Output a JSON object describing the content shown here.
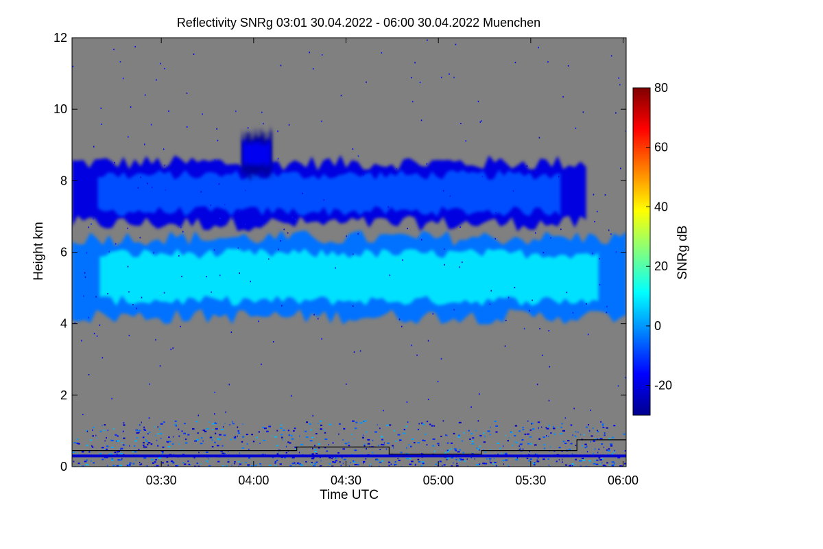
{
  "chart_data": {
    "type": "heatmap",
    "title": "Reflectivity SNRg   03:01 30.04.2022 - 06:00 30.04.2022 Muenchen",
    "xlabel": "Time UTC",
    "ylabel": "Height km",
    "colorbar_label": "SNRg dB",
    "xlim_minutes": [
      181,
      361
    ],
    "ylim": [
      0,
      12
    ],
    "x_ticks": [
      {
        "value": 210,
        "label": "03:30"
      },
      {
        "value": 240,
        "label": "04:00"
      },
      {
        "value": 270,
        "label": "04:30"
      },
      {
        "value": 300,
        "label": "05:00"
      },
      {
        "value": 330,
        "label": "05:30"
      },
      {
        "value": 360,
        "label": "06:00"
      }
    ],
    "y_ticks": [
      {
        "value": 0,
        "label": "0"
      },
      {
        "value": 2,
        "label": "2"
      },
      {
        "value": 4,
        "label": "4"
      },
      {
        "value": 6,
        "label": "6"
      },
      {
        "value": 8,
        "label": "8"
      },
      {
        "value": 10,
        "label": "10"
      },
      {
        "value": 12,
        "label": "12"
      }
    ],
    "colorbar_range": [
      -30,
      80
    ],
    "colorbar_ticks": [
      {
        "value": -20,
        "label": "-20"
      },
      {
        "value": 0,
        "label": "0"
      },
      {
        "value": 20,
        "label": "20"
      },
      {
        "value": 40,
        "label": "40"
      },
      {
        "value": 60,
        "label": "60"
      },
      {
        "value": 80,
        "label": "80"
      }
    ],
    "colormap": [
      "#00008f",
      "#0000ff",
      "#0080ff",
      "#00ffff",
      "#80ff80",
      "#ffff00",
      "#ff8000",
      "#ff0000",
      "#800000"
    ],
    "background_color": "#808080",
    "cloud_layers": [
      {
        "name": "upper layer",
        "t_start": 181,
        "t_end": 348,
        "base_km": 6.8,
        "top_km": 8.5,
        "snr_db": -8
      },
      {
        "name": "main layer",
        "t_start": 181,
        "t_end": 361,
        "base_km": 4.2,
        "top_km": 6.4,
        "snr_db": 8
      },
      {
        "name": "isolated cell",
        "t_start": 236,
        "t_end": 246,
        "base_km": 8.2,
        "top_km": 9.3,
        "snr_db": -18
      },
      {
        "name": "boundary layer clutter",
        "t_start": 181,
        "t_end": 361,
        "base_km": 0.0,
        "top_km": 1.3,
        "snr_db": -10
      }
    ],
    "boundary_layer_height": [
      {
        "t_start": 181,
        "t_end": 254,
        "height_km": 0.45
      },
      {
        "t_start": 254,
        "t_end": 284,
        "height_km": 0.55
      },
      {
        "t_start": 284,
        "t_end": 314,
        "height_km": 0.35
      },
      {
        "t_start": 314,
        "t_end": 345,
        "height_km": 0.45
      },
      {
        "t_start": 345,
        "t_end": 361,
        "height_km": 0.75
      }
    ],
    "ground_layer_height_km": 0.3
  }
}
